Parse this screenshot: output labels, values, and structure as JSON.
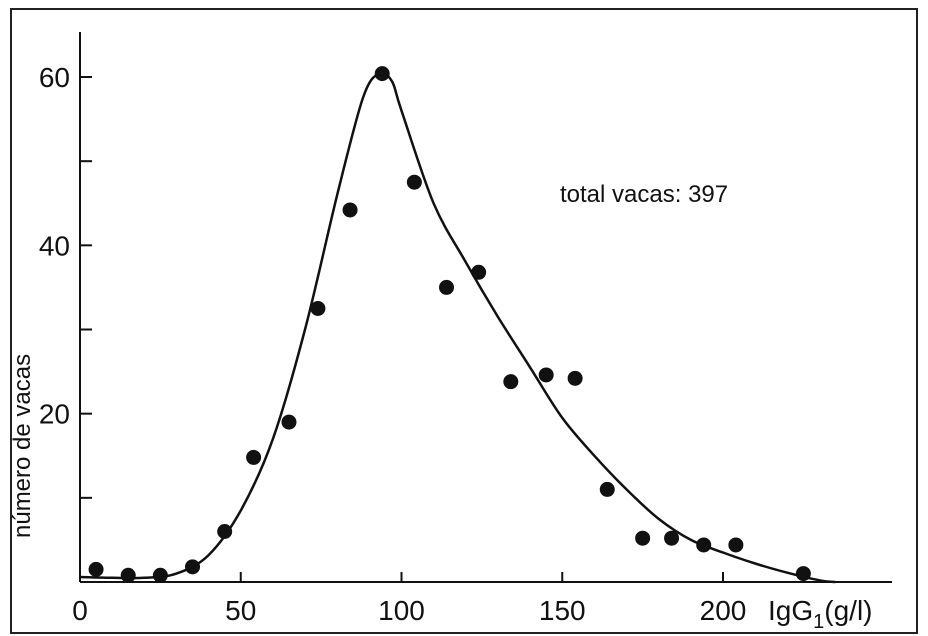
{
  "chart_data": {
    "type": "scatter",
    "ylabel": "número de vacas",
    "xlabel": "IgG",
    "xlabel_sub": "1",
    "xlabel_unit": "(g/l)",
    "annotation": "total vacas: 397",
    "xlim": [
      0,
      250
    ],
    "ylim": [
      0,
      65
    ],
    "x_ticks": [
      0,
      50,
      100,
      150,
      200
    ],
    "x_tick_labels": [
      "0",
      "50",
      "100",
      "150",
      "200"
    ],
    "y_ticks": [
      0,
      10,
      20,
      30,
      40,
      50,
      60
    ],
    "y_tick_labels": [
      "",
      "",
      "20",
      "",
      "40",
      "",
      "60"
    ],
    "grid": false,
    "series": [
      {
        "kind": "points",
        "x": [
          5,
          15,
          25,
          35,
          45,
          54,
          65,
          74,
          84,
          94,
          104,
          114,
          124,
          134,
          145,
          154,
          164,
          175,
          184,
          194,
          204,
          225
        ],
        "y": [
          1.5,
          0.8,
          0.8,
          1.8,
          6,
          14.8,
          19,
          32.5,
          44.2,
          60.4,
          47.5,
          35,
          36.8,
          23.8,
          24.6,
          24.2,
          11,
          5.2,
          5.2,
          4.4,
          4.4,
          1
        ]
      },
      {
        "kind": "curve",
        "x": [
          0,
          10,
          20,
          30,
          40,
          50,
          60,
          70,
          80,
          88,
          93,
          97,
          100,
          110,
          120,
          130,
          140,
          150,
          160,
          170,
          180,
          190,
          200,
          210,
          220,
          230,
          235
        ],
        "y": [
          0.6,
          0.5,
          0.5,
          1.0,
          3.2,
          8.5,
          17,
          30,
          46,
          57.5,
          60.4,
          59.5,
          56,
          45,
          38,
          31.5,
          25.5,
          19.5,
          15,
          11,
          7.5,
          5,
          3.5,
          2.2,
          1.1,
          0.2,
          0
        ]
      }
    ]
  }
}
